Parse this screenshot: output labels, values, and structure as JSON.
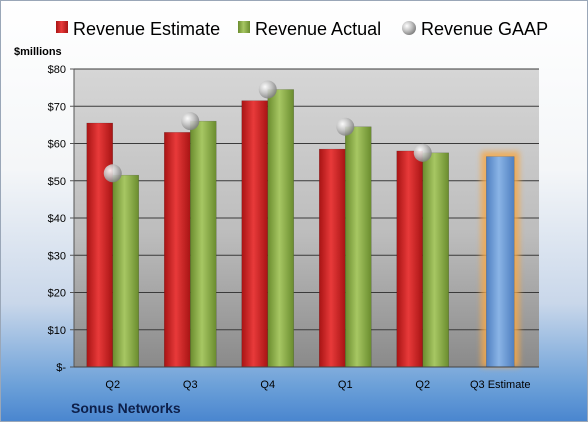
{
  "company_name": "Sonus Networks",
  "chart_data": {
    "type": "bar",
    "ylabel": "$millions",
    "categories": [
      "Q2",
      "Q3",
      "Q4",
      "Q1",
      "Q2",
      "Q3 Estimate"
    ],
    "ylim": [
      0,
      80
    ],
    "yticks": [
      {
        "value": 0,
        "label": "$-"
      },
      {
        "value": 10,
        "label": "$10"
      },
      {
        "value": 20,
        "label": "$20"
      },
      {
        "value": 30,
        "label": "$30"
      },
      {
        "value": 40,
        "label": "$40"
      },
      {
        "value": 50,
        "label": "$50"
      },
      {
        "value": 60,
        "label": "$60"
      },
      {
        "value": 70,
        "label": "$70"
      },
      {
        "value": 80,
        "label": "$80"
      }
    ],
    "grid": true,
    "legend_position": "top",
    "series": [
      {
        "name": "Revenue Estimate",
        "kind": "bar",
        "color": "#d42a2a",
        "values": [
          65.5,
          63,
          71.5,
          58.5,
          58,
          null
        ]
      },
      {
        "name": "Revenue Actual",
        "kind": "bar",
        "color": "#8db04a",
        "values": [
          51.5,
          66,
          74.5,
          64.5,
          57.5,
          null
        ]
      },
      {
        "name": "Revenue GAAP",
        "kind": "marker",
        "color": "#b0b0b0",
        "values": [
          52,
          66,
          74.5,
          64.5,
          57.5,
          null
        ]
      },
      {
        "name": "Revenue Estimate (Q3 Estimate)",
        "kind": "highlight-bar",
        "color": "#6f9fd8",
        "glow": "#f5a84a",
        "values": [
          null,
          null,
          null,
          null,
          null,
          56.5
        ]
      }
    ]
  }
}
